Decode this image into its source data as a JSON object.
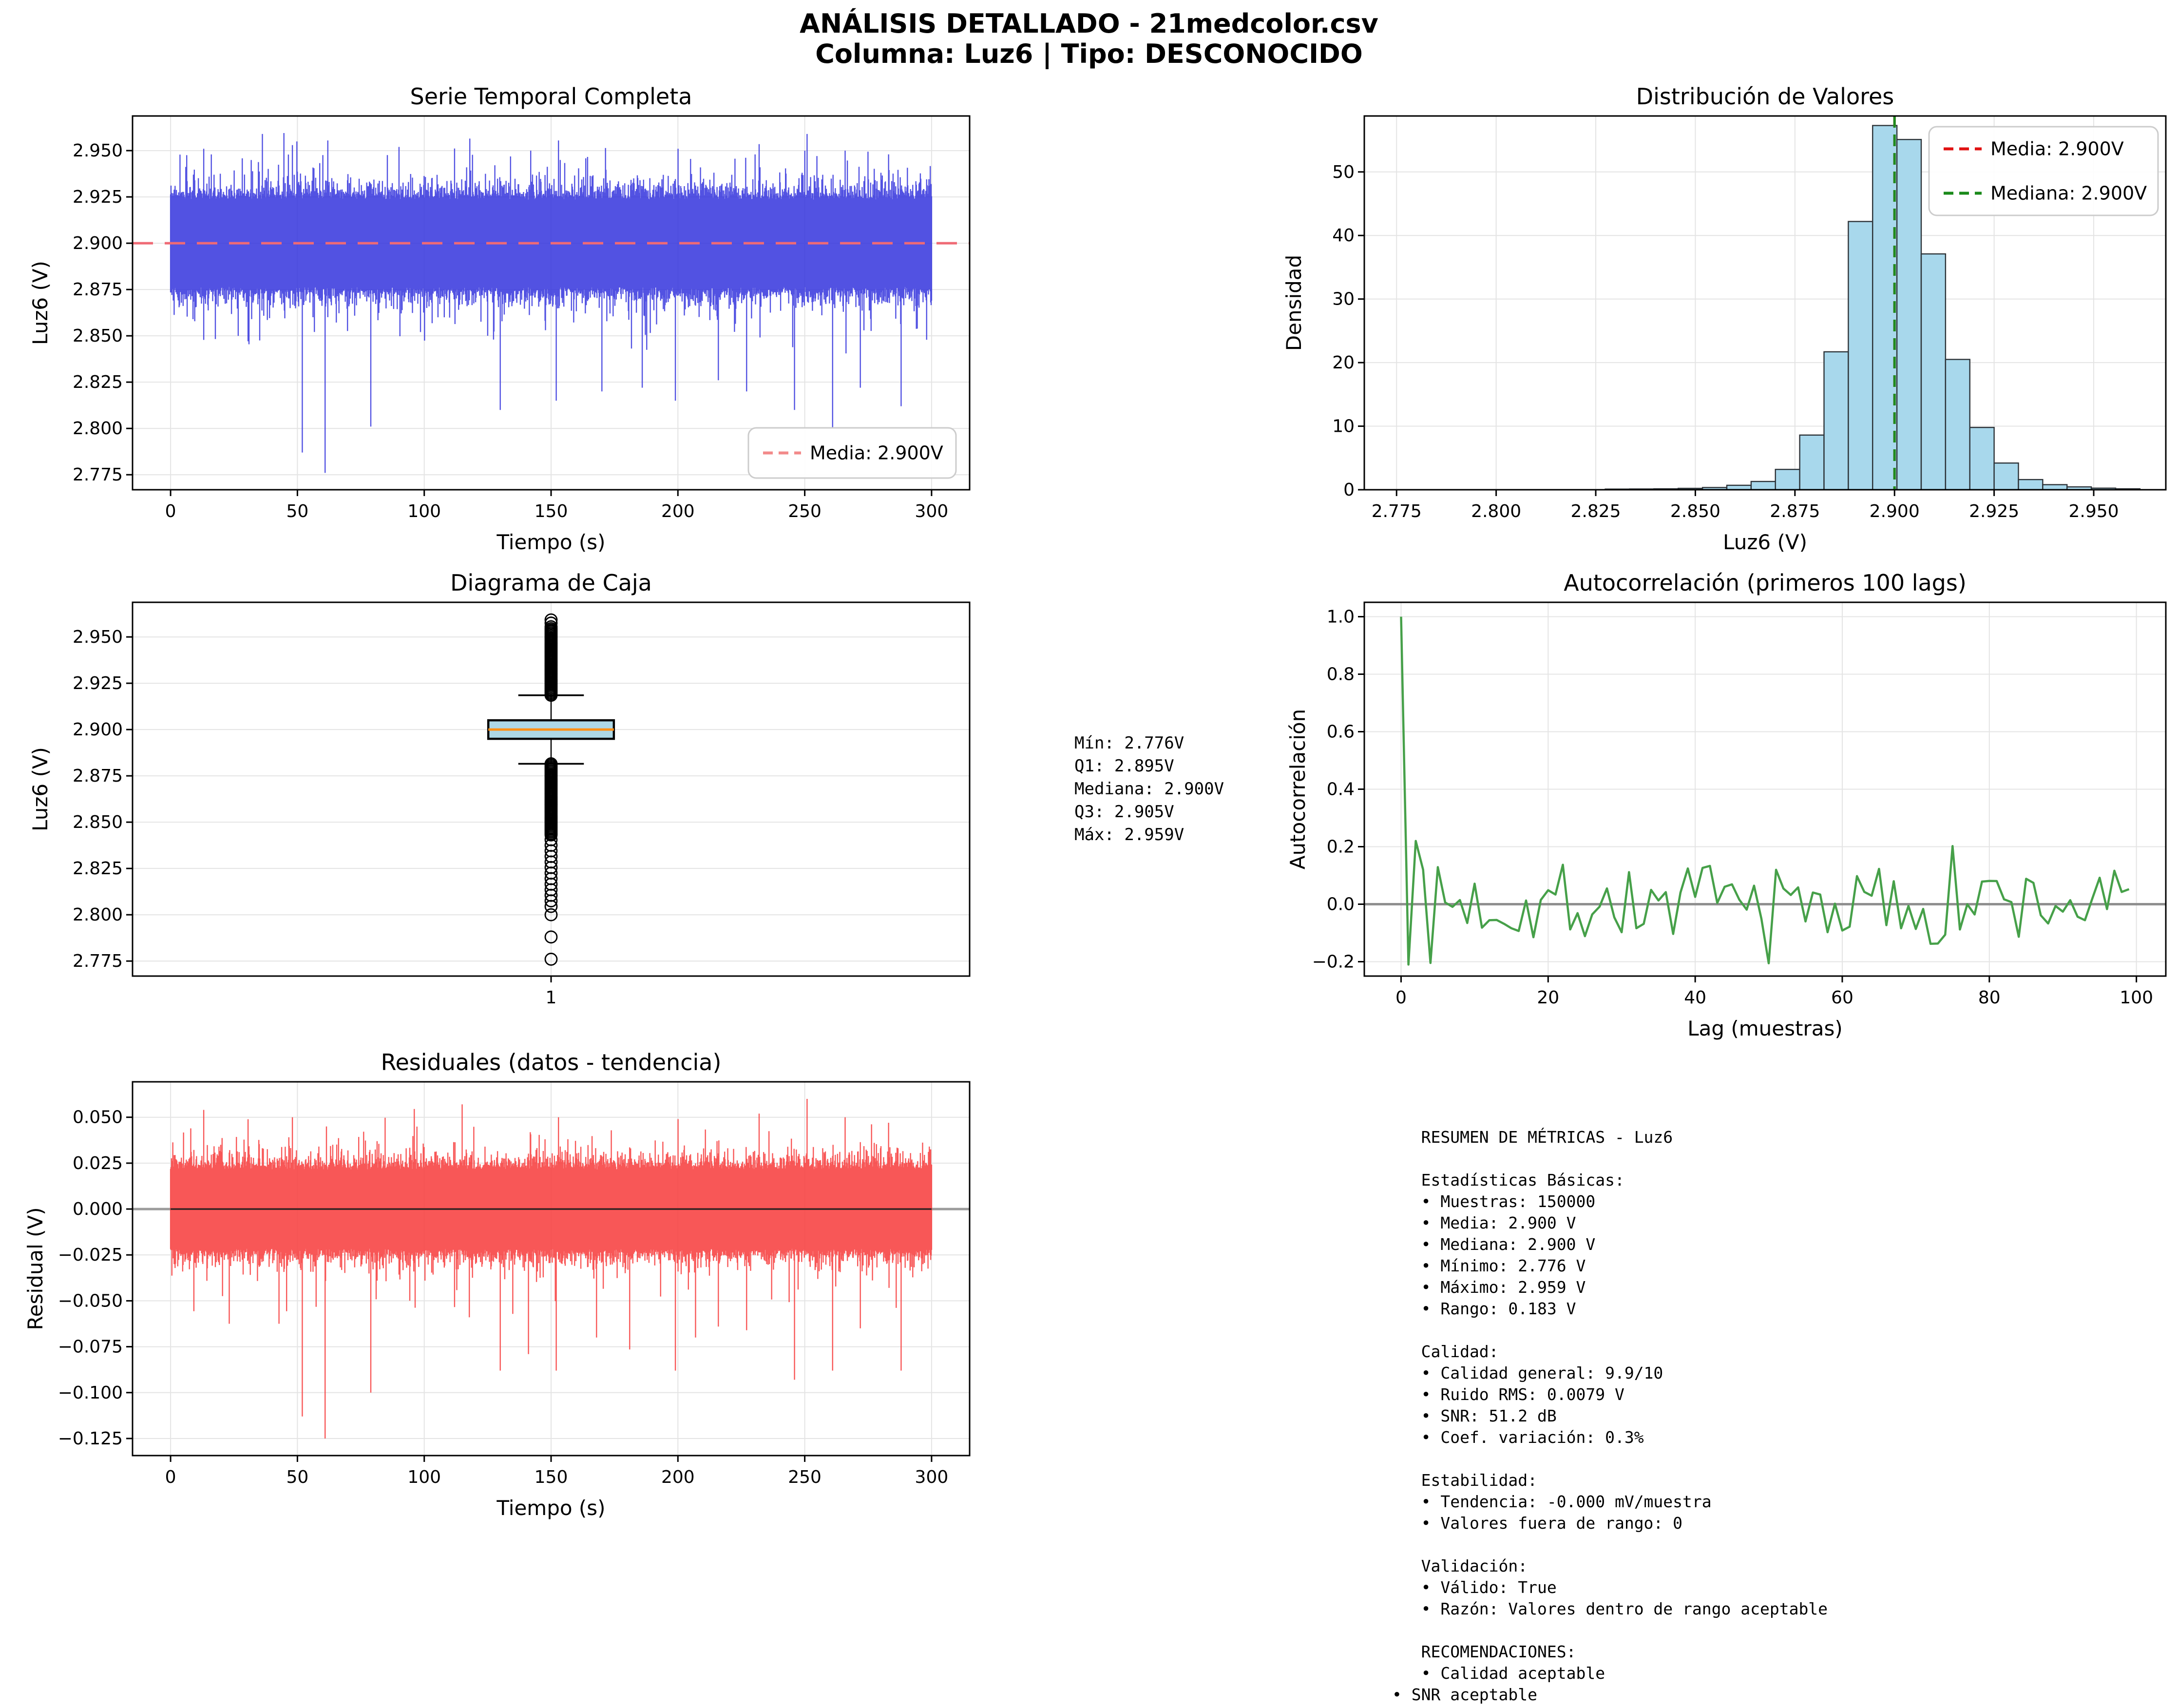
{
  "figure": {
    "suptitle1": "ANÁLISIS DETALLADO - 21medcolor.csv",
    "suptitle2": "Columna: Luz6 | Tipo: DESCONOCIDO",
    "background": "#ffffff",
    "grid_color": "#e4e4e4",
    "spine_color": "#000000"
  },
  "chart_data": [
    {
      "id": "serie_temporal",
      "type": "line",
      "render": "band",
      "title": "Serie Temporal Completa",
      "xlabel": "Tiempo (s)",
      "ylabel": "Luz6 (V)",
      "xlim": [
        -15,
        315
      ],
      "ylim": [
        2.7669,
        2.9687
      ],
      "xticks": {
        "values": [
          0,
          50,
          100,
          150,
          200,
          250,
          300
        ],
        "labels": [
          "0",
          "50",
          "100",
          "150",
          "200",
          "250",
          "300"
        ]
      },
      "yticks": {
        "values": [
          2.775,
          2.8,
          2.825,
          2.85,
          2.875,
          2.9,
          2.925,
          2.95
        ],
        "labels": [
          "2.775",
          "2.800",
          "2.825",
          "2.850",
          "2.875",
          "2.900",
          "2.925",
          "2.950"
        ]
      },
      "color": "#3434dd",
      "opacity": 0.85,
      "mean_line": {
        "value": 2.9,
        "color": "#ef6a75",
        "label": "Media: 2.900V"
      },
      "legend": {
        "pos": "lr",
        "entries": [
          {
            "label": "Media: 2.900V",
            "color": "#f28a8a"
          }
        ]
      },
      "series_summary": {
        "n_samples": 150000,
        "duration_s": 300,
        "mean_v": 2.9,
        "min_v": 2.776,
        "max_v": 2.959,
        "dense_band_v": [
          2.8765,
          2.9235
        ]
      },
      "gen": {
        "seed": 11,
        "columns": 1700,
        "t_range": [
          0,
          300
        ],
        "mean": 2.9,
        "band": 0.0235,
        "jitter": 0.004,
        "spike_prob": 0.022,
        "spike_amp_up": 0.026,
        "spike_amp_down": 0.03,
        "clamp_up": 2.9595,
        "clamp_down": 2.8405,
        "spikes_up": [
          [
            13,
            2.951
          ],
          [
            48,
            2.953
          ],
          [
            62,
            2.9555
          ],
          [
            90,
            2.952
          ],
          [
            118,
            2.9565
          ],
          [
            142,
            2.95
          ],
          [
            153,
            2.9555
          ],
          [
            200,
            2.951
          ],
          [
            232,
            2.9535
          ],
          [
            251,
            2.959
          ],
          [
            266,
            2.95
          ],
          [
            283,
            2.948
          ]
        ],
        "spikes_down": [
          [
            52,
            2.787
          ],
          [
            61,
            2.776
          ],
          [
            79,
            2.801
          ],
          [
            130,
            2.81
          ],
          [
            152,
            2.815
          ],
          [
            170,
            2.82
          ],
          [
            186,
            2.822
          ],
          [
            199,
            2.815
          ],
          [
            216,
            2.826
          ],
          [
            227,
            2.82
          ],
          [
            246,
            2.81
          ],
          [
            261,
            2.8
          ],
          [
            272,
            2.822
          ],
          [
            288,
            2.812
          ]
        ]
      }
    },
    {
      "id": "distribucion",
      "type": "bar",
      "render": "hist",
      "title": "Distribución de Valores",
      "xlabel": "Luz6 (V)",
      "ylabel": "Densidad",
      "xlim": [
        2.7669,
        2.9681
      ],
      "ylim": [
        0,
        58.8
      ],
      "xticks": {
        "values": [
          2.775,
          2.8,
          2.825,
          2.85,
          2.875,
          2.9,
          2.925,
          2.95
        ],
        "labels": [
          "2.775",
          "2.800",
          "2.825",
          "2.850",
          "2.875",
          "2.900",
          "2.925",
          "2.950"
        ]
      },
      "yticks": {
        "values": [
          0,
          10,
          20,
          30,
          40,
          50
        ],
        "labels": [
          "0",
          "10",
          "20",
          "30",
          "40",
          "50"
        ]
      },
      "bin_start": 2.7725,
      "bin_width": 0.0061,
      "densities": [
        0.03,
        0.03,
        0.04,
        0.04,
        0.05,
        0.05,
        0.06,
        0.07,
        0.08,
        0.1,
        0.12,
        0.15,
        0.22,
        0.35,
        0.7,
        1.3,
        3.2,
        8.6,
        21.7,
        42.2,
        57.3,
        55.1,
        37.1,
        20.5,
        9.8,
        4.2,
        1.6,
        0.8,
        0.45,
        0.25,
        0.15
      ],
      "bar_fill": "#a8d8ec",
      "bar_edge": "#2d3338",
      "vlines": [
        {
          "x": 2.9,
          "color": "#d61515",
          "name": "media"
        },
        {
          "x": 2.9,
          "color": "#1e8c1e",
          "name": "mediana"
        }
      ],
      "legend": {
        "pos": "ur",
        "entries": [
          {
            "label": "Media: 2.900V",
            "color": "#e01212"
          },
          {
            "label": "Mediana: 2.900V",
            "color": "#1a8a1a"
          }
        ]
      }
    },
    {
      "id": "caja",
      "type": "box",
      "render": "box",
      "title": "Diagrama de Caja",
      "xlabel": "",
      "ylabel": "Luz6 (V)",
      "xlim": [
        0.4,
        1.6
      ],
      "ylim": [
        2.7669,
        2.9687
      ],
      "xticks": {
        "values": [
          1
        ],
        "labels": [
          "1"
        ]
      },
      "yticks": {
        "values": [
          2.775,
          2.8,
          2.825,
          2.85,
          2.875,
          2.9,
          2.925,
          2.95
        ],
        "labels": [
          "2.775",
          "2.800",
          "2.825",
          "2.850",
          "2.875",
          "2.900",
          "2.925",
          "2.950"
        ]
      },
      "box": {
        "center": 1,
        "halfwidth": 0.09,
        "cap_halfwidth": 0.047,
        "min": 2.776,
        "q1": 2.895,
        "median": 2.9,
        "q3": 2.905,
        "max": 2.959,
        "whisker_low": 2.8815,
        "whisker_high": 2.9185,
        "fill": "#add8e6",
        "median_color": "#ff9015"
      },
      "outliers": {
        "dense_top": {
          "from": 2.9185,
          "to": 2.9545,
          "step": 0.0008
        },
        "sparse_top": [
          2.9555,
          2.9575,
          2.9592
        ],
        "dense_bottom": {
          "from": 2.8815,
          "to": 2.8425,
          "step": -0.0008
        },
        "sparse_bottom": [
          2.8405,
          2.8375,
          2.8345,
          2.8315,
          2.8285,
          2.8255,
          2.8225,
          2.8195,
          2.8165,
          2.8135,
          2.8105,
          2.8075,
          2.8045,
          2.8,
          2.788,
          2.776
        ]
      }
    },
    {
      "id": "autocorrelacion",
      "type": "line",
      "render": "acf",
      "title": "Autocorrelación (primeros 100 lags)",
      "xlabel": "Lag (muestras)",
      "ylabel": "Autocorrelación",
      "xlim": [
        -5,
        104
      ],
      "ylim": [
        -0.25,
        1.05
      ],
      "xticks": {
        "values": [
          0,
          20,
          40,
          60,
          80,
          100
        ],
        "labels": [
          "0",
          "20",
          "40",
          "60",
          "80",
          "100"
        ]
      },
      "yticks": {
        "values": [
          -0.2,
          0.0,
          0.2,
          0.4,
          0.6,
          0.8,
          1.0
        ],
        "labels": [
          "−0.2",
          "0.0",
          "0.2",
          "0.4",
          "0.6",
          "0.8",
          "1.0"
        ]
      },
      "color": "#46a049",
      "zero_line": {
        "color": "#8f8f8f",
        "width": 5
      },
      "acf": {
        "n_lags": 100,
        "lag0": 1.0,
        "early": [
          -0.21,
          0.22,
          0.12
        ],
        "amp": 0.135,
        "boost_prob": 0.12,
        "boost_factor": 1.55,
        "seed": 7
      }
    },
    {
      "id": "residuales",
      "type": "line",
      "render": "band",
      "title": "Residuales (datos - tendencia)",
      "xlabel": "Tiempo (s)",
      "ylabel": "Residual (V)",
      "xlim": [
        -15,
        315
      ],
      "ylim": [
        -0.1343,
        0.0693
      ],
      "xticks": {
        "values": [
          0,
          50,
          100,
          150,
          200,
          250,
          300
        ],
        "labels": [
          "0",
          "50",
          "100",
          "150",
          "200",
          "250",
          "300"
        ]
      },
      "yticks": {
        "values": [
          0.05,
          0.025,
          0.0,
          -0.025,
          -0.05,
          -0.075,
          -0.1,
          -0.125
        ],
        "labels": [
          "0.050",
          "0.025",
          "0.000",
          "−0.025",
          "−0.050",
          "−0.075",
          "−0.100",
          "−0.125"
        ]
      },
      "color": "#f74040",
      "opacity": 0.88,
      "zero_line": {
        "color": "#9b9b9b",
        "width": 5
      },
      "trend_line": {
        "value": 0,
        "color": "#202020",
        "width": 3,
        "t0": 0,
        "t1": 300
      },
      "series_summary": {
        "mean_v": 0.0,
        "min_v": -0.125,
        "max_v": 0.06,
        "dense_band_v": [
          -0.025,
          0.025
        ]
      },
      "gen": {
        "seed": 23,
        "columns": 1700,
        "t_range": [
          0,
          300
        ],
        "mean": 0.0,
        "band": 0.0215,
        "jitter": 0.0035,
        "spike_prob": 0.022,
        "spike_amp_up": 0.024,
        "spike_amp_down": 0.035,
        "clamp_up": 0.0605,
        "clamp_down": -0.0625,
        "spikes_up": [
          [
            13,
            0.054
          ],
          [
            48,
            0.05
          ],
          [
            96,
            0.0545
          ],
          [
            115,
            0.057
          ],
          [
            153,
            0.05
          ],
          [
            200,
            0.049
          ],
          [
            232,
            0.052
          ],
          [
            251,
            0.06
          ],
          [
            266,
            0.05
          ],
          [
            283,
            0.047
          ]
        ],
        "spikes_down": [
          [
            52,
            -0.113
          ],
          [
            61,
            -0.125
          ],
          [
            79,
            -0.1
          ],
          [
            130,
            -0.088
          ],
          [
            141,
            -0.079
          ],
          [
            152,
            -0.088
          ],
          [
            168,
            -0.07
          ],
          [
            181,
            -0.0765
          ],
          [
            199,
            -0.088
          ],
          [
            207,
            -0.07
          ],
          [
            216,
            -0.064
          ],
          [
            227,
            -0.066
          ],
          [
            246,
            -0.093
          ],
          [
            261,
            -0.088
          ],
          [
            272,
            -0.065
          ],
          [
            288,
            -0.088
          ]
        ]
      }
    }
  ],
  "box_stats_text": {
    "lines": [
      "Mín: 2.776V",
      "Q1: 2.895V",
      "Mediana: 2.900V",
      "Q3: 2.905V",
      "Máx: 2.959V"
    ]
  },
  "metrics_text": {
    "lines": [
      "   RESUMEN DE MÉTRICAS - Luz6",
      "",
      "   Estadísticas Básicas:",
      "   • Muestras: 150000",
      "   • Media: 2.900 V",
      "   • Mediana: 2.900 V",
      "   • Mínimo: 2.776 V",
      "   • Máximo: 2.959 V",
      "   • Rango: 0.183 V",
      "",
      "   Calidad:",
      "   • Calidad general: 9.9/10",
      "   • Ruido RMS: 0.0079 V",
      "   • SNR: 51.2 dB",
      "   • Coef. variación: 0.3%",
      "",
      "   Estabilidad:",
      "   • Tendencia: -0.000 mV/muestra",
      "   • Valores fuera de rango: 0",
      "",
      "   Validación:",
      "   • Válido: True",
      "   • Razón: Valores dentro de rango aceptable",
      "",
      "   RECOMENDACIONES:",
      "   • Calidad aceptable",
      "• SNR aceptable"
    ]
  }
}
